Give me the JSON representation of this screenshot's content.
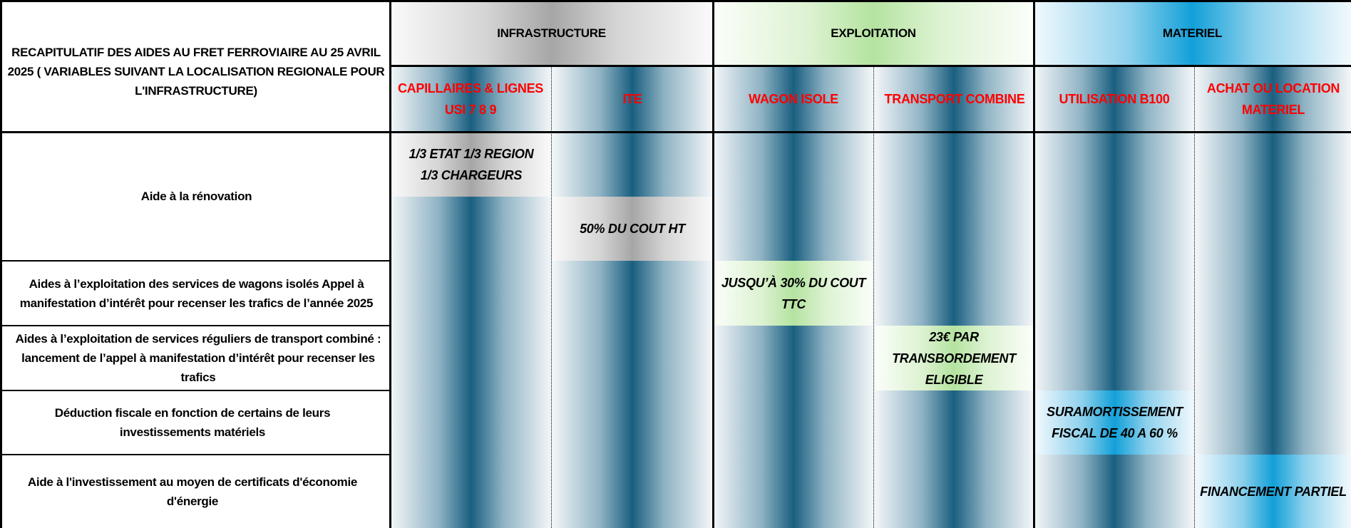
{
  "title": "RECAPITULATIF DES AIDES AU FRET FERROVIAIRE AU 25 AVRIL 2025 ( VARIABLES SUIVANT LA LOCALISATION REGIONALE POUR L'INFRASTRUCTURE)",
  "groups": {
    "infrastructure": "INFRASTRUCTURE",
    "exploitation": "EXPLOITATION",
    "materiel": "MATERIEL"
  },
  "columns": [
    "CAPILLAIRES & LIGNES USI 7 8 9",
    "ITE",
    "WAGON ISOLE",
    "TRANSPORT COMBINE",
    "UTILISATION B100",
    "ACHAT OU LOCATION MATERIEL"
  ],
  "rows": [
    "Aide à la rénovation",
    "Aides à l’exploitation des services de wagons isolés Appel à manifestation d’intérêt pour recenser les trafics de l’année 2025",
    "Aides à l’exploitation de services réguliers de transport combiné : lancement de l’appel à manifestation d’intérêt pour recenser les trafics",
    "Déduction fiscale en fonction de certains de leurs investissements matériels",
    "Aide à l'investissement au moyen de certificats d'économie d'énergie"
  ],
  "cells": {
    "renovation_capillaires": "1/3 ETAT 1/3 REGION 1/3 CHARGEURS",
    "renovation_ite": "50% DU COUT HT",
    "wagon_isole": "JUSQU’À 30% DU COUT TTC",
    "transport_combine": "23€ PAR TRANSBORDEMENT ELIGIBLE",
    "b100": "SURAMORTISSEMENT FISCAL DE 40 A 60 %",
    "achat_location": "FINANCEMENT PARTIEL"
  },
  "colors": {
    "column_dark": "#1a5f80",
    "infrastructure": "#a6a6a6",
    "exploitation": "#b4e3a0",
    "materiel": "#12a0d8",
    "column_header_text": "#ff0000"
  }
}
